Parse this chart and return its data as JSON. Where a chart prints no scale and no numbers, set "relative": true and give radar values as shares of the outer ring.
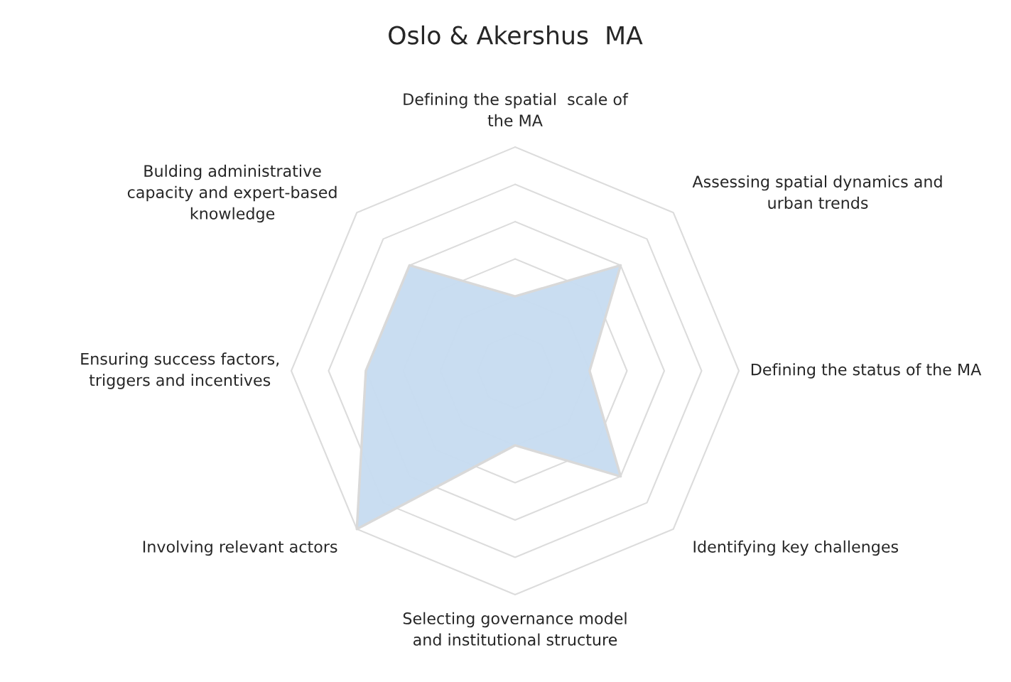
{
  "chart_data": {
    "type": "radar",
    "title": "Oslo & Akershus  MA",
    "categories": [
      "Defining the spatial  scale of\nthe MA",
      "Assessing spatial dynamics and\nurban trends",
      "Defining the status of the MA",
      "Identifying key challenges",
      "Selecting governance model\nand institutional structure",
      "Involving relevant actors",
      "Ensuring success factors,\ntriggers and incentives",
      "Bulding administrative\ncapacity and expert-based\nknowledge"
    ],
    "relative": true,
    "series": [
      {
        "color": "#c6dbf0",
        "values": [
          0.333,
          0.667,
          0.333,
          0.667,
          0.333,
          1,
          0.667,
          0.667
        ]
      }
    ],
    "legend": false
  }
}
